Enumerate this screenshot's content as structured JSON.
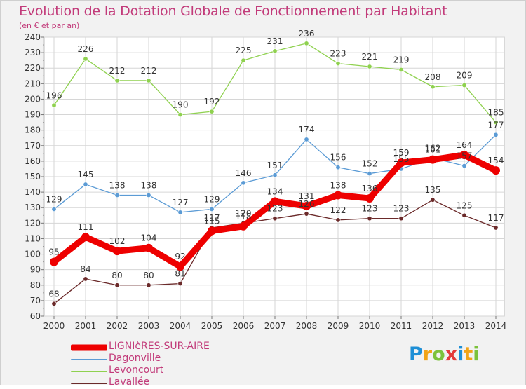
{
  "title": "Evolution de la Dotation Globale de Fonctionnement par Habitant",
  "subtitle": "(en € et par an)",
  "logo": "Proxiti",
  "colors": {
    "title": "#c23b7a",
    "background": "#f2f2f2",
    "plot_bg": "#ffffff",
    "grid": "#d6d6d6"
  },
  "chart_data": {
    "type": "line",
    "title": "Evolution de la Dotation Globale de Fonctionnement par Habitant",
    "subtitle": "(en € et par an)",
    "xlabel": "",
    "ylabel": "",
    "x": [
      2000,
      2001,
      2002,
      2003,
      2004,
      2005,
      2006,
      2007,
      2008,
      2009,
      2010,
      2011,
      2012,
      2013,
      2014
    ],
    "ylim": [
      60,
      240
    ],
    "yticks": [
      60,
      70,
      80,
      90,
      100,
      110,
      120,
      130,
      140,
      150,
      160,
      170,
      180,
      190,
      200,
      210,
      220,
      230,
      240
    ],
    "grid": true,
    "legend_position": "bottom-left",
    "series": [
      {
        "name": "LIGNIèRES-SUR-AIRE",
        "color": "#ee0000",
        "values": [
          95,
          111,
          102,
          104,
          92,
          115,
          118,
          134,
          131,
          138,
          136,
          159,
          161,
          164,
          154
        ]
      },
      {
        "name": "Dagonville",
        "color": "#5b9bd5",
        "values": [
          129,
          145,
          138,
          138,
          127,
          129,
          146,
          151,
          174,
          156,
          152,
          155,
          162,
          157,
          177
        ]
      },
      {
        "name": "Levoncourt",
        "color": "#8fd14f",
        "values": [
          196,
          226,
          212,
          212,
          190,
          192,
          225,
          231,
          236,
          223,
          221,
          219,
          208,
          209,
          185
        ]
      },
      {
        "name": "Lavallée",
        "color": "#6b2a2a",
        "values": [
          68,
          84,
          80,
          80,
          81,
          117,
          120,
          123,
          126,
          122,
          123,
          123,
          135,
          125,
          117
        ]
      }
    ]
  }
}
